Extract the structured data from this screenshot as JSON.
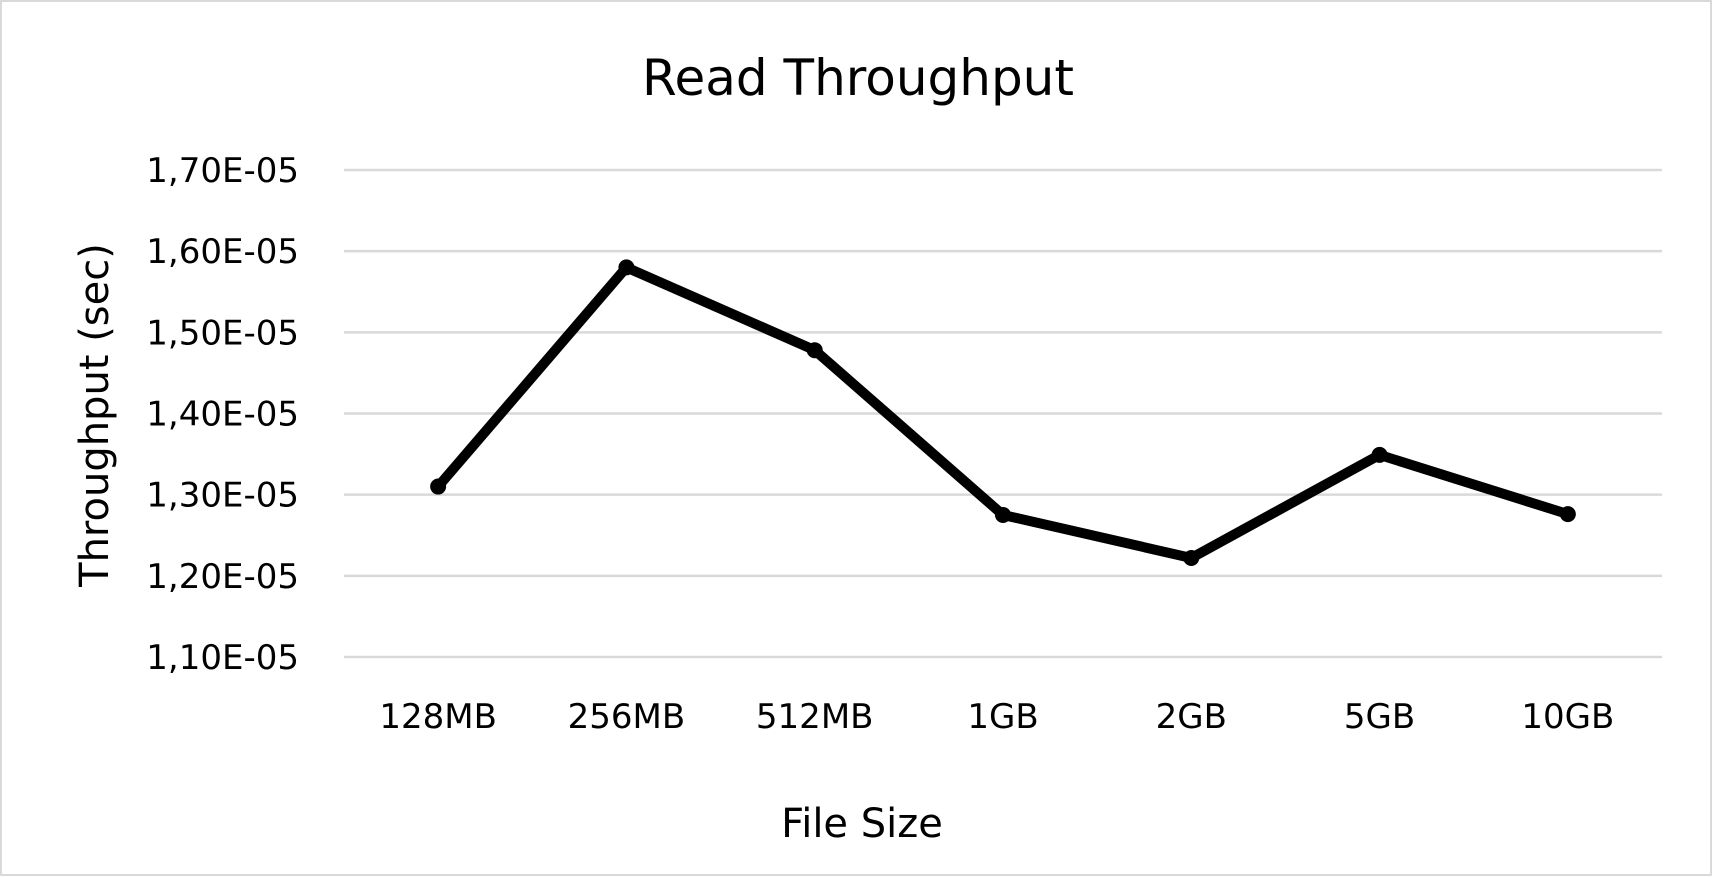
{
  "chart_data": {
    "type": "line",
    "title": "Read Throughput",
    "xlabel": "File Size",
    "ylabel": "Throughput (sec)",
    "categories": [
      "128MB",
      "256MB",
      "512MB",
      "1GB",
      "2GB",
      "5GB",
      "10GB"
    ],
    "series": [
      {
        "values": [
          1.31e-05,
          1.58e-05,
          1.478e-05,
          1.275e-05,
          1.222e-05,
          1.349e-05,
          1.276e-05
        ],
        "color": "#000000"
      }
    ],
    "ylim": [
      1.1e-05,
      1.7e-05
    ],
    "yticks": [
      1.1e-05,
      1.2e-05,
      1.3e-05,
      1.4e-05,
      1.5e-05,
      1.6e-05,
      1.7e-05
    ],
    "ytick_labels": [
      "1,10E-05",
      "1,20E-05",
      "1,30E-05",
      "1,40E-05",
      "1,50E-05",
      "1,60E-05",
      "1,70E-05"
    ],
    "grid": true,
    "legend": "none",
    "gridline_color": "#d9d9d9",
    "border_color": "#d9d9d9"
  }
}
